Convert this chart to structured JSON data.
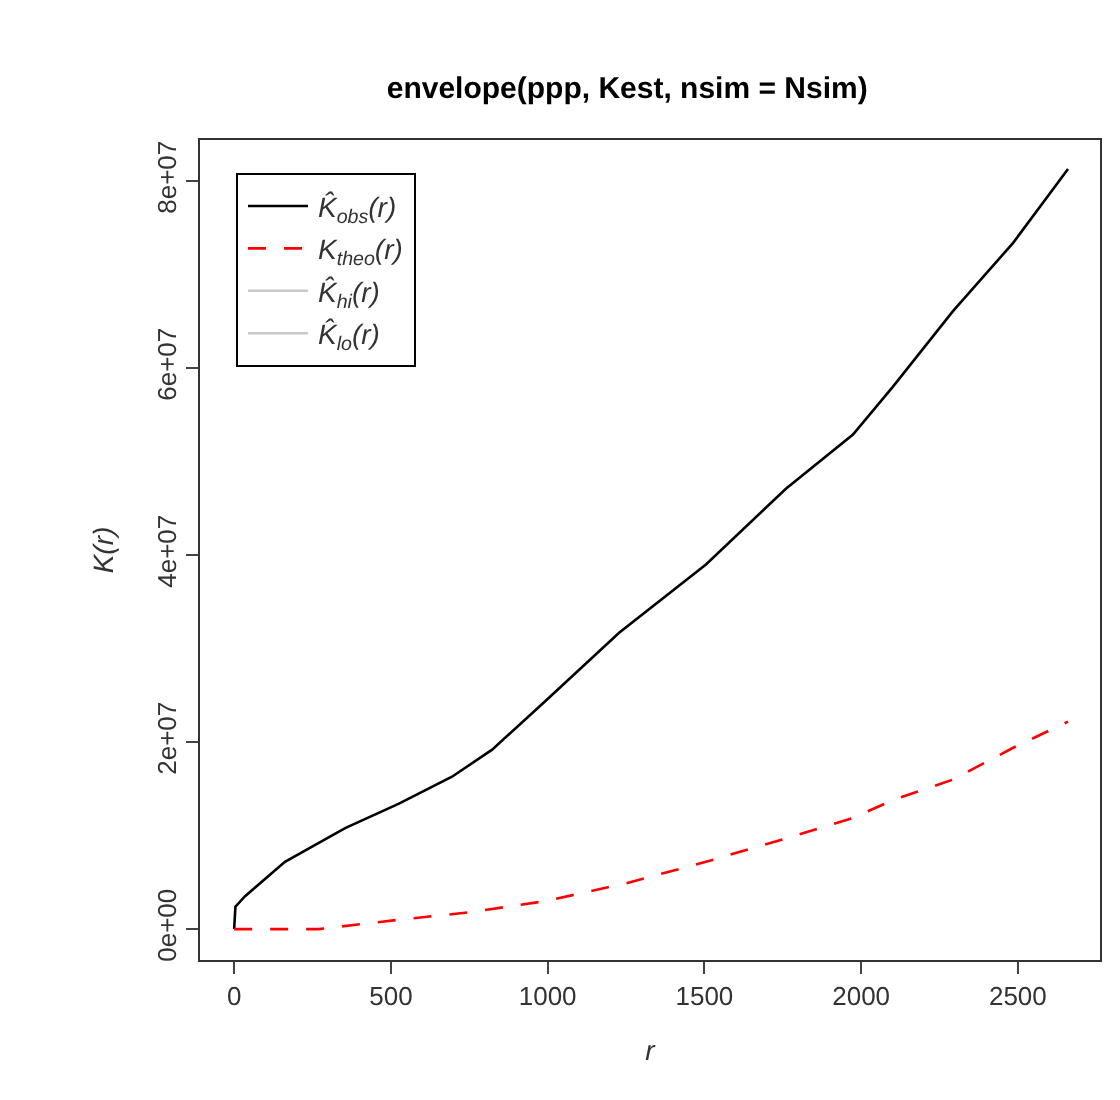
{
  "chart_data": {
    "type": "line",
    "title": "envelope(ppp, Kest, nsim = Nsim)",
    "xlabel": "r",
    "ylabel": "K(r)",
    "xlim": [
      -109,
      2762
    ],
    "ylim": [
      -3300000,
      84400000
    ],
    "xticks": [
      0,
      500,
      1000,
      1500,
      2000,
      2500
    ],
    "yticks": [
      {
        "value": 0,
        "label": "0e+00"
      },
      {
        "value": 20000000,
        "label": "2e+07"
      },
      {
        "value": 40000000,
        "label": "4e+07"
      },
      {
        "value": 60000000,
        "label": "6e+07"
      },
      {
        "value": 80000000,
        "label": "8e+07"
      }
    ],
    "legend": "top left",
    "series": [
      {
        "name": "K̂$_{obs}$(r)",
        "color": "#000000",
        "line_style": "solid",
        "x": [
          0,
          4,
          34,
          162,
          354,
          524,
          695,
          823,
          993,
          1228,
          1505,
          1760,
          1974,
          2101,
          2293,
          2485,
          2660
        ],
        "values": [
          0,
          2400000,
          3500000,
          7200000,
          10800000,
          13400000,
          16300000,
          19200000,
          24400000,
          31700000,
          39000000,
          47100000,
          52900000,
          58000000,
          66100000,
          73400000,
          81300000
        ]
      },
      {
        "name": "K$_{theo}$(r)",
        "color": "#ff0000",
        "line_style": "dashed",
        "x": [
          0,
          269,
          524,
          750,
          993,
          1250,
          1505,
          1760,
          1974,
          2101,
          2293,
          2485,
          2660
        ],
        "values": [
          0,
          0,
          1000000,
          1800000,
          3000000,
          4900000,
          7200000,
          9700000,
          11900000,
          13800000,
          16000000,
          19400000,
          22200000
        ]
      },
      {
        "name": "K̂$_{hi}$(r)",
        "color": "#c8c8c8",
        "line_style": "solid",
        "values": [
          null,
          null
        ]
      },
      {
        "name": "K̂$_{lo}$(r)",
        "color": "#c8c8c8",
        "line_style": "solid",
        "values": [
          null,
          null
        ]
      }
    ]
  }
}
